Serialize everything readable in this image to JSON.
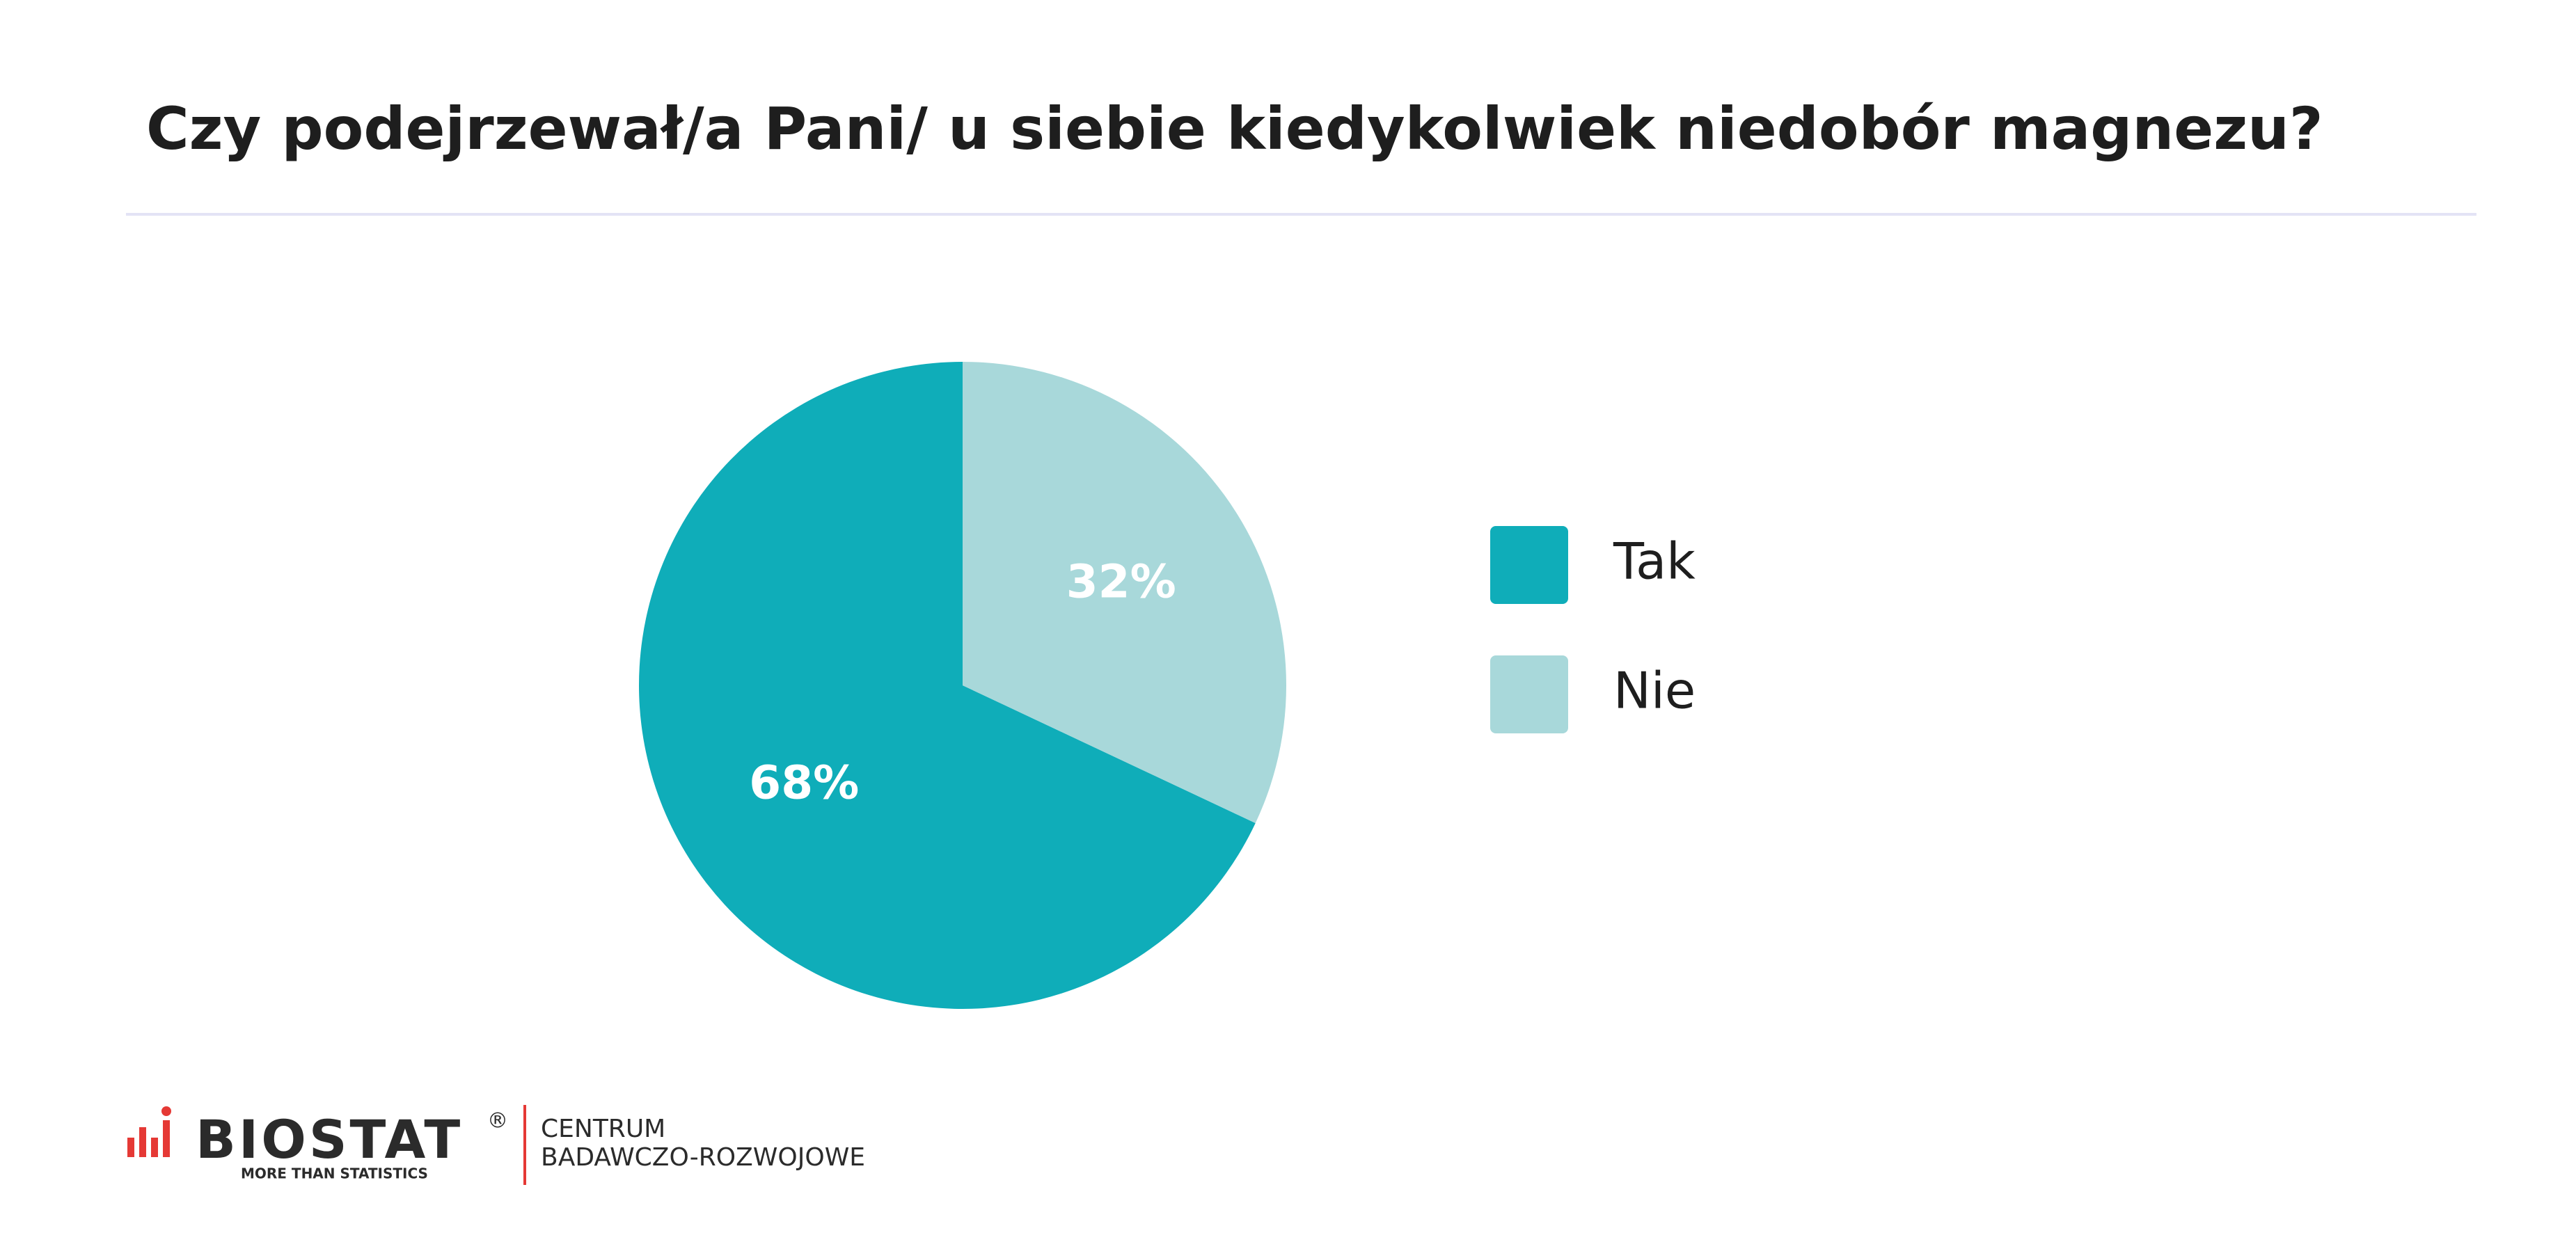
{
  "chart_data": {
    "type": "pie",
    "title": "Czy podejrzewał/a Pani/ u siebie kiedykolwiek niedobór magnezu?",
    "categories": [
      "Tak",
      "Nie"
    ],
    "values": [
      68,
      32
    ],
    "value_labels": [
      "68%",
      "32%"
    ],
    "colors": [
      "#0fadb9",
      "#a8d8da"
    ],
    "legend": "right"
  },
  "footer": {
    "brand": "BIOSTAT",
    "registered": "®",
    "tagline": "MORE THAN STATISTICS",
    "unit_line1": "CENTRUM",
    "unit_line2": "BADAWCZO-ROZWOJOWE"
  }
}
